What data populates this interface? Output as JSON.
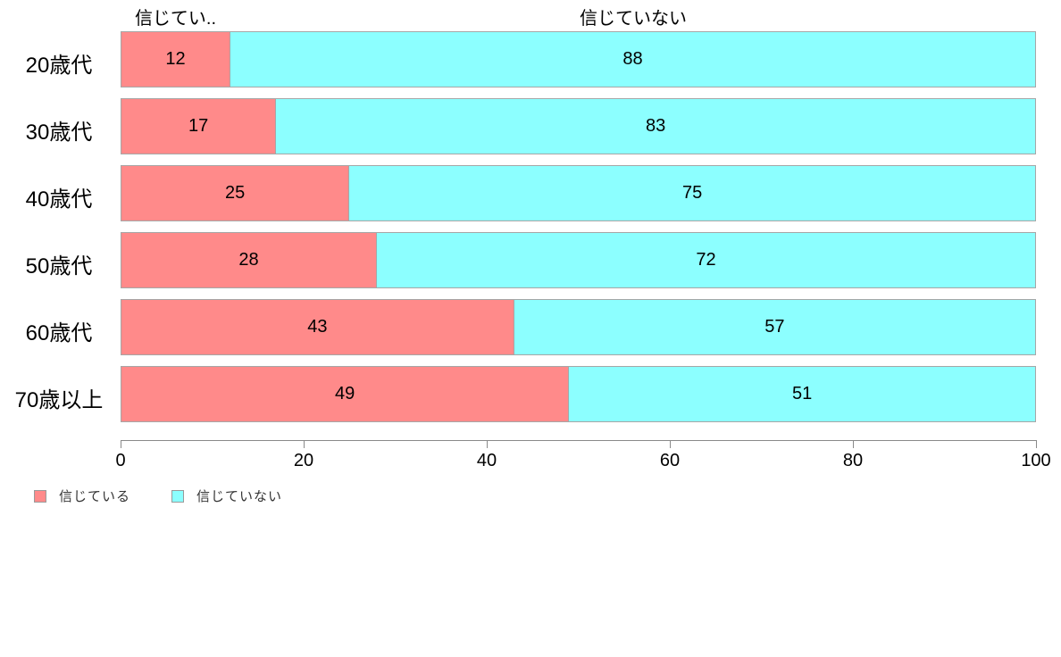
{
  "chart_data": {
    "type": "bar",
    "orientation": "horizontal",
    "stacked": true,
    "title": "",
    "xlabel": "",
    "ylabel": "",
    "categories": [
      "20歳代",
      "30歳代",
      "40歳代",
      "50歳代",
      "60歳代",
      "70歳以上"
    ],
    "series": [
      {
        "name": "信じている",
        "color": "#ff8a8a",
        "values": [
          12,
          17,
          25,
          28,
          43,
          49
        ]
      },
      {
        "name": "信じていない",
        "color": "#8cffff",
        "values": [
          88,
          83,
          75,
          72,
          57,
          51
        ]
      }
    ],
    "column_headers": [
      "信じてい..",
      "信じていない"
    ],
    "x_ticks": [
      0,
      20,
      40,
      60,
      80,
      100
    ],
    "xlim": [
      0,
      100
    ],
    "grid": false,
    "legend_position": "bottom-left"
  },
  "legend": {
    "items": [
      {
        "label": "信じている",
        "color": "#ff8a8a"
      },
      {
        "label": "信じていない",
        "color": "#8cffff"
      }
    ]
  },
  "colors": {
    "background": "#ffffff",
    "bar_border": "#a6a6a6",
    "axis": "#8a8a8a",
    "value_text": "#000000",
    "category_text": "#000000",
    "legend_text": "#333333"
  }
}
